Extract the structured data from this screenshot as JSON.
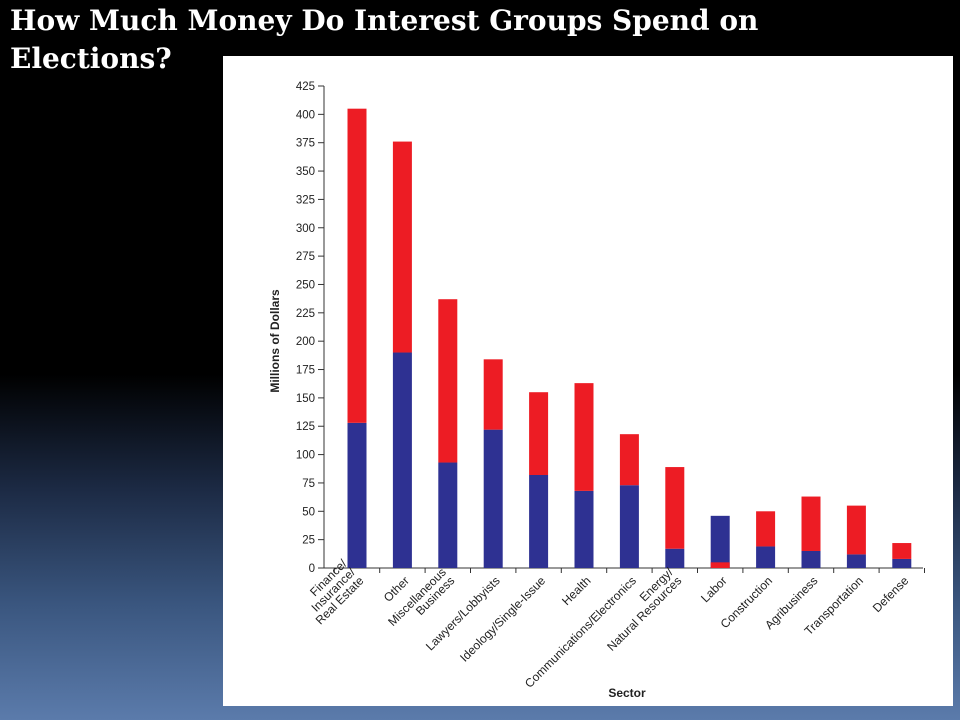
{
  "slide": {
    "title": "How Much Money Do Interest Groups Spend on Elections?"
  },
  "colors": {
    "republican_segment": "#ed1c24",
    "democrat_segment": "#2e3192",
    "axis": "#333333",
    "text": "#222222"
  },
  "chart_data": {
    "type": "bar",
    "stacked": true,
    "title": "",
    "xlabel": "Sector",
    "ylabel": "Millions of Dollars",
    "ylim": [
      0,
      425
    ],
    "yticks": [
      0,
      25,
      50,
      75,
      100,
      125,
      150,
      175,
      200,
      225,
      250,
      275,
      300,
      325,
      350,
      375,
      400,
      425
    ],
    "grid": false,
    "legend": "none",
    "categories": [
      "Finance/ Insurance/ Real Estate",
      "Other",
      "Miscellaneous Business",
      "Lawyers/Lobbyists",
      "Ideology/Single-Issue",
      "Health",
      "Communications/Electronics",
      "Energy/ Natural Resources",
      "Labor",
      "Construction",
      "Agribusiness",
      "Transportation",
      "Defense"
    ],
    "category_lines": [
      [
        "Finance/",
        "Insurance/",
        "Real Estate"
      ],
      [
        "Other"
      ],
      [
        "Miscellaneous",
        "Business"
      ],
      [
        "Lawyers/Lobbyists"
      ],
      [
        "Ideology/Single-Issue"
      ],
      [
        "Health"
      ],
      [
        "Communications/Electronics"
      ],
      [
        "Energy/",
        "Natural Resources"
      ],
      [
        "Labor"
      ],
      [
        "Construction"
      ],
      [
        "Agribusiness"
      ],
      [
        "Transportation"
      ],
      [
        "Defense"
      ]
    ],
    "series": [
      {
        "color": "#2e3192",
        "values": [
          128,
          190,
          93,
          122,
          82,
          68,
          73,
          17,
          46,
          19,
          15,
          12,
          8
        ]
      },
      {
        "color": "#ed1c24",
        "values": [
          277,
          186,
          144,
          62,
          73,
          95,
          45,
          72,
          5,
          31,
          48,
          43,
          14
        ],
        "overlay_from_zero_indices": [
          8
        ]
      }
    ]
  }
}
